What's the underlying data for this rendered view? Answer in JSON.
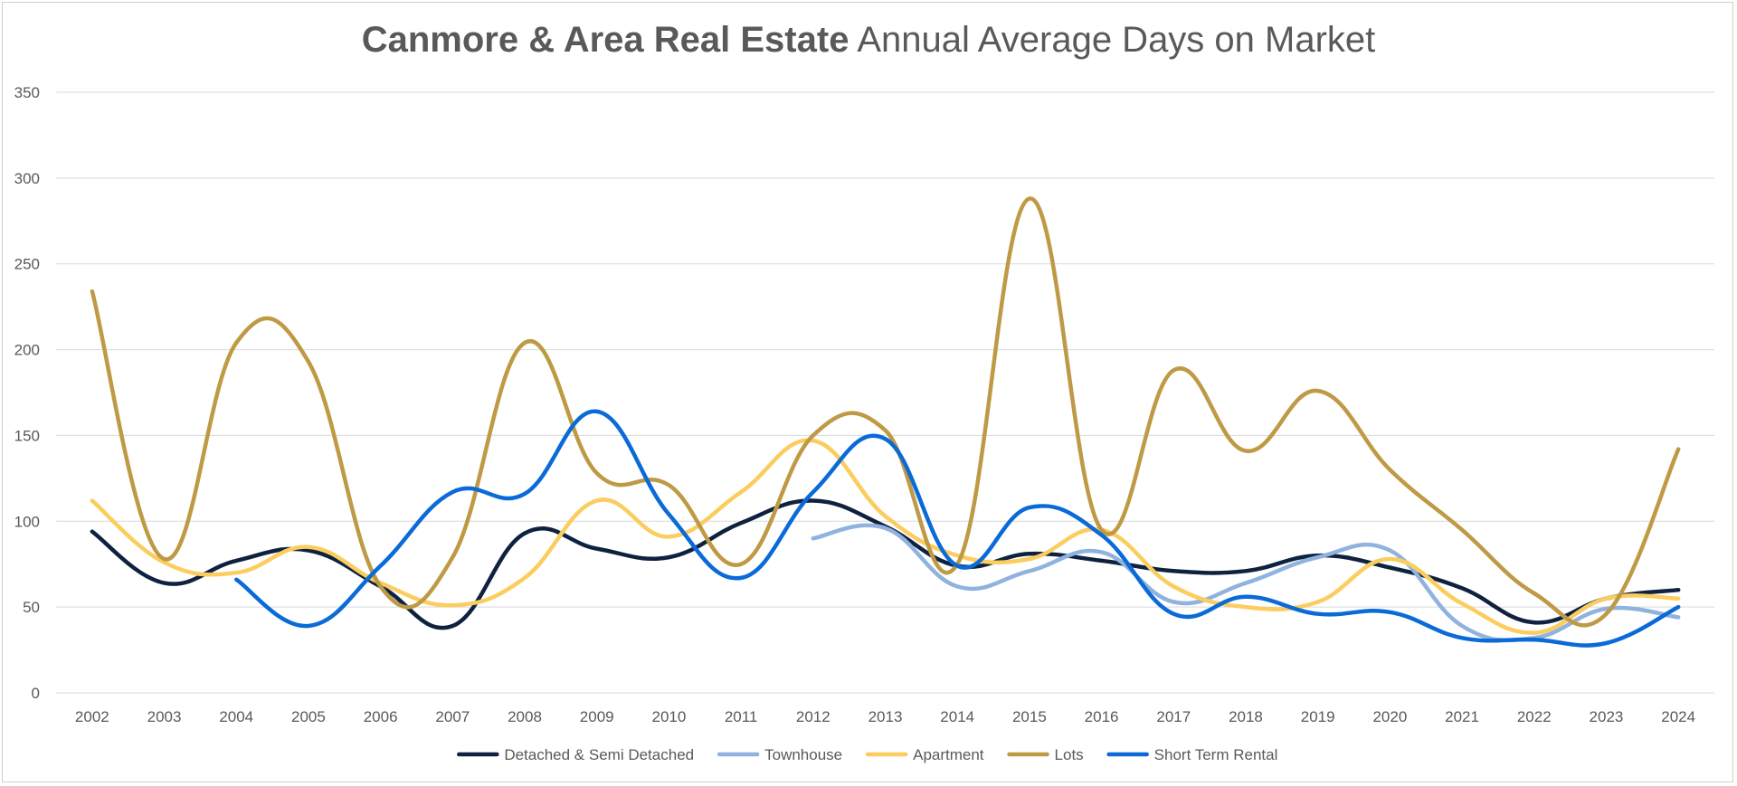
{
  "chart_data": {
    "type": "line",
    "title_bold": "Canmore & Area Real Estate",
    "title_rest": "Annual Average Days on Market",
    "xlabel": "",
    "ylabel": "",
    "ylim": [
      0,
      350
    ],
    "yticks": [
      0,
      50,
      100,
      150,
      200,
      250,
      300,
      350
    ],
    "grid": true,
    "legend_position": "bottom",
    "categories": [
      "2002",
      "2003",
      "2004",
      "2005",
      "2006",
      "2007",
      "2008",
      "2009",
      "2010",
      "2011",
      "2012",
      "2013",
      "2014",
      "2015",
      "2016",
      "2017",
      "2018",
      "2019",
      "2020",
      "2021",
      "2022",
      "2023",
      "2024"
    ],
    "series": [
      {
        "name": "Detached & Semi Detached",
        "color": "#0e2240",
        "values": [
          94,
          64,
          77,
          83,
          62,
          39,
          93,
          84,
          79,
          99,
          112,
          97,
          74,
          81,
          77,
          71,
          71,
          80,
          73,
          61,
          41,
          55,
          60
        ]
      },
      {
        "name": "Townhouse",
        "color": "#8fb2df",
        "values": [
          null,
          null,
          null,
          null,
          null,
          null,
          null,
          null,
          null,
          null,
          90,
          96,
          62,
          71,
          82,
          53,
          64,
          79,
          83,
          39,
          32,
          49,
          44
        ]
      },
      {
        "name": "Apartment",
        "color": "#fbcd5e",
        "values": [
          112,
          76,
          70,
          85,
          64,
          51,
          67,
          112,
          91,
          117,
          147,
          103,
          80,
          78,
          95,
          62,
          50,
          53,
          78,
          52,
          35,
          55,
          55
        ]
      },
      {
        "name": "Lots",
        "color": "#bf9a45",
        "values": [
          234,
          78,
          204,
          193,
          62,
          79,
          204,
          128,
          121,
          75,
          150,
          153,
          75,
          288,
          95,
          188,
          141,
          176,
          130,
          95,
          58,
          46,
          142
        ]
      },
      {
        "name": "Short Term Rental",
        "color": "#0a6ad8",
        "values": [
          null,
          null,
          66,
          39,
          74,
          117,
          116,
          164,
          104,
          67,
          117,
          148,
          74,
          108,
          92,
          46,
          56,
          46,
          47,
          32,
          31,
          29,
          50
        ]
      }
    ]
  }
}
